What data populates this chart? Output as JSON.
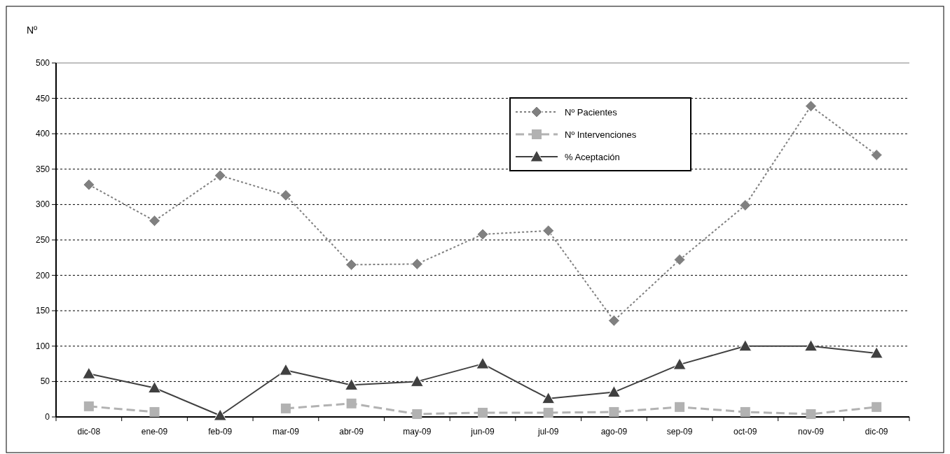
{
  "chart_data": {
    "type": "line",
    "ylabel": "Nº",
    "categories": [
      "dic-08",
      "ene-09",
      "feb-09",
      "mar-09",
      "abr-09",
      "may-09",
      "jun-09",
      "jul-09",
      "ago-09",
      "sep-09",
      "oct-09",
      "nov-09",
      "dic-09"
    ],
    "series": [
      {
        "name": "Nº Pacientes",
        "color": "#808080",
        "marker": "diamond",
        "line_style": "dotted",
        "values": [
          328,
          277,
          341,
          313,
          215,
          216,
          258,
          263,
          136,
          222,
          299,
          439,
          370
        ]
      },
      {
        "name": "Nº Intervenciones",
        "color": "#b2b2b2",
        "marker": "square",
        "line_style": "dashed",
        "values": [
          15,
          7,
          null,
          12,
          19,
          4,
          6,
          6,
          7,
          14,
          7,
          4,
          14
        ]
      },
      {
        "name": "% Aceptación",
        "color": "#404040",
        "marker": "triangle",
        "line_style": "solid",
        "values": [
          61,
          41,
          2,
          66,
          45,
          50,
          75,
          26,
          35,
          74,
          100,
          100,
          90
        ]
      }
    ],
    "ylim": [
      0,
      500
    ],
    "yticks": [
      0,
      50,
      100,
      150,
      200,
      250,
      300,
      350,
      400,
      450,
      500
    ],
    "grid": "y",
    "legend": "top right"
  }
}
